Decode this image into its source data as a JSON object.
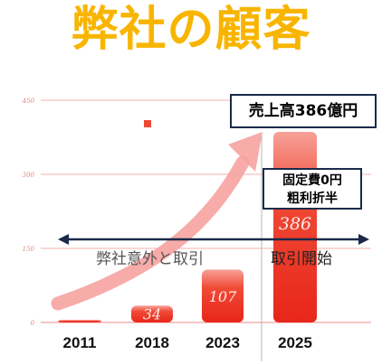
{
  "title": "弊社の顧客",
  "callouts": {
    "revenue": "売上高386億円",
    "cost_line1": "固定費0円",
    "cost_line2": "粗利折半"
  },
  "timeline": {
    "before_label": "弊社意外と取引",
    "after_label": "取引開始"
  },
  "colors": {
    "title": "#f8b500",
    "bar": "#f03b2a",
    "arrow": "#f6a3a0",
    "timeline": "#1b2a4a",
    "grid": "#f3b2ad"
  },
  "chart_data": {
    "type": "bar",
    "categories": [
      "2011",
      "2018",
      "2023",
      "2025"
    ],
    "values": [
      5,
      34,
      107,
      386
    ],
    "data_labels": [
      "",
      "34",
      "107",
      "386"
    ],
    "yticks": [
      "0",
      "150",
      "300",
      "450"
    ],
    "ylim": [
      0,
      450
    ],
    "grid": true,
    "legend": "none"
  }
}
